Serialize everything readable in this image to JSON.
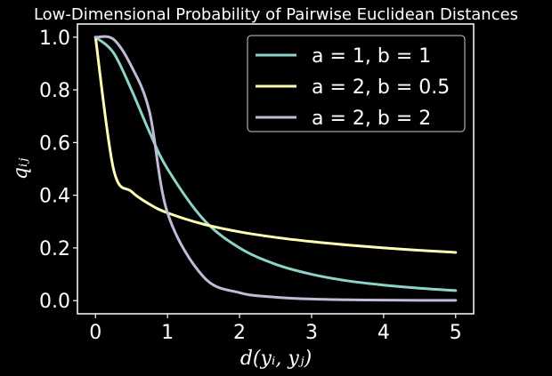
{
  "chart_data": {
    "type": "line",
    "title": "Low-Dimensional Probability of Pairwise Euclidean Distances",
    "xlabel": "d(yᵢ, yⱼ)",
    "ylabel": "qᵢⱼ",
    "xlim": [
      -0.25,
      5.25
    ],
    "ylim": [
      -0.05,
      1.05
    ],
    "x_ticks": [
      "0",
      "1",
      "2",
      "3",
      "4",
      "5"
    ],
    "y_ticks": [
      "0.0",
      "0.2",
      "0.4",
      "0.6",
      "0.8",
      "1.0"
    ],
    "grid": false,
    "legend_position": "top-right",
    "x": [
      0,
      0.25,
      0.5,
      0.75,
      1,
      1.5,
      2,
      2.5,
      3,
      3.5,
      4,
      4.5,
      5
    ],
    "series": [
      {
        "name": "a = 1, b = 1",
        "color": "#8dd3c7",
        "values": [
          1.0,
          0.941,
          0.8,
          0.64,
          0.5,
          0.308,
          0.2,
          0.138,
          0.1,
          0.075,
          0.059,
          0.047,
          0.038
        ]
      },
      {
        "name": "a = 2, b = 0.5",
        "color": "#feffb3",
        "values": [
          1.0,
          0.5,
          0.414,
          0.366,
          0.333,
          0.29,
          0.261,
          0.24,
          0.224,
          0.211,
          0.2,
          0.191,
          0.183
        ]
      },
      {
        "name": "a = 2, b = 2",
        "color": "#bfbbd9",
        "values": [
          1.0,
          0.992,
          0.889,
          0.717,
          0.333,
          0.09,
          0.03,
          0.013,
          0.006,
          0.003,
          0.002,
          0.001,
          0.001
        ]
      }
    ]
  }
}
